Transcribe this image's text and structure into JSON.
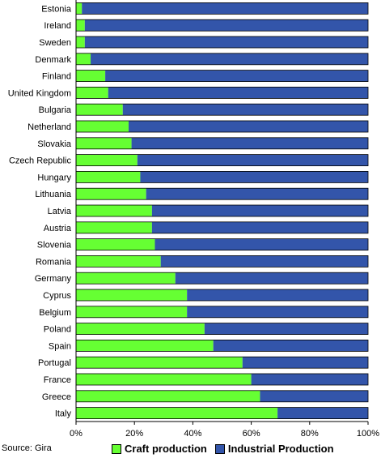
{
  "chart_data": {
    "type": "bar",
    "orientation": "horizontal",
    "stacked": "percent",
    "categories": [
      "Estonia",
      "Ireland",
      "Sweden",
      "Denmark",
      "Finland",
      "United Kingdom",
      "Bulgaria",
      "Netherland",
      "Slovakia",
      "Czech Republic",
      "Hungary",
      "Lithuania",
      "Latvia",
      "Austria",
      "Slovenia",
      "Romania",
      "Germany",
      "Cyprus",
      "Belgium",
      "Poland",
      "Spain",
      "Portugal",
      "France",
      "Greece",
      "Italy"
    ],
    "series": [
      {
        "name": "Craft production",
        "color": "#66ff33",
        "values": [
          2,
          3,
          3,
          5,
          10,
          11,
          16,
          18,
          19,
          21,
          22,
          24,
          26,
          26,
          27,
          29,
          34,
          38,
          38,
          44,
          47,
          57,
          60,
          63,
          69
        ]
      },
      {
        "name": "Industrial Production",
        "color": "#3355aa",
        "values": [
          98,
          97,
          97,
          95,
          90,
          89,
          84,
          82,
          81,
          79,
          78,
          76,
          74,
          74,
          73,
          71,
          66,
          62,
          62,
          56,
          53,
          43,
          40,
          37,
          31
        ]
      }
    ],
    "xlim": [
      0,
      100
    ],
    "xticks": [
      "0%",
      "20%",
      "40%",
      "60%",
      "80%",
      "100%"
    ],
    "legend_position": "bottom",
    "grid": false
  },
  "source_text": "Source: Gira"
}
